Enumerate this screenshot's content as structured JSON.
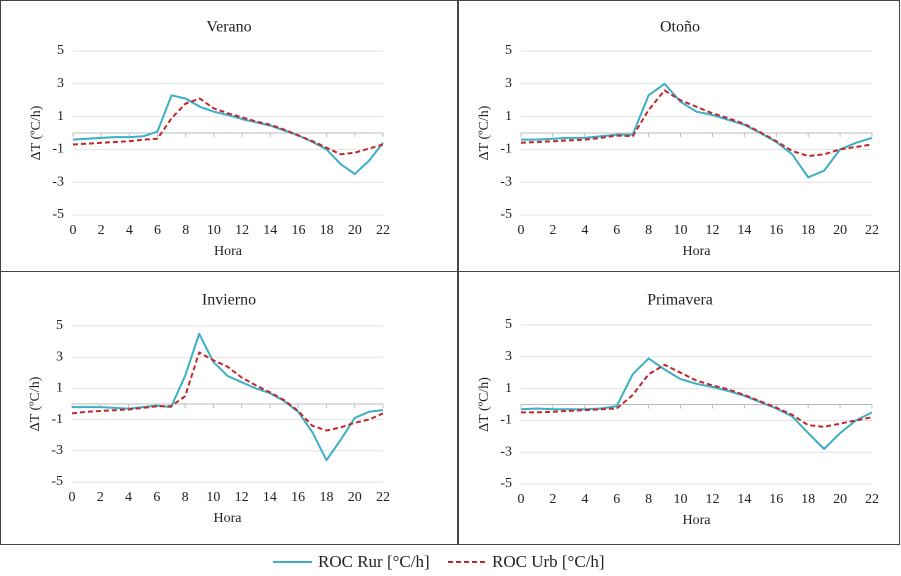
{
  "chart_data": [
    {
      "type": "line",
      "title": "Verano",
      "xlabel": "Hora",
      "ylabel": "ΔT (ºC/h)",
      "x": [
        0,
        1,
        2,
        3,
        4,
        5,
        6,
        7,
        8,
        9,
        10,
        11,
        12,
        13,
        14,
        15,
        16,
        17,
        18,
        19,
        20,
        21,
        22
      ],
      "xlim": [
        0,
        22
      ],
      "xticks": [
        0,
        2,
        4,
        6,
        8,
        10,
        12,
        14,
        16,
        18,
        20,
        22
      ],
      "ylim": [
        -5,
        5
      ],
      "yticks": [
        -5,
        -3,
        -1,
        1,
        3,
        5
      ],
      "grid": true,
      "series": [
        {
          "name": "ROC Rur [°C/h]",
          "color": "#3bafc4",
          "values": [
            -0.4,
            -0.35,
            -0.3,
            -0.25,
            -0.25,
            -0.2,
            0.1,
            2.3,
            2.1,
            1.6,
            1.3,
            1.1,
            0.85,
            0.65,
            0.45,
            0.15,
            -0.15,
            -0.55,
            -1.0,
            -1.9,
            -2.5,
            -1.7,
            -0.6
          ]
        },
        {
          "name": "ROC Urb [°C/h]",
          "color": "#c0282d",
          "dashed": true,
          "values": [
            -0.7,
            -0.65,
            -0.6,
            -0.55,
            -0.5,
            -0.4,
            -0.35,
            0.9,
            1.8,
            2.1,
            1.5,
            1.2,
            0.95,
            0.7,
            0.5,
            0.2,
            -0.15,
            -0.5,
            -0.9,
            -1.3,
            -1.2,
            -0.95,
            -0.7
          ]
        }
      ]
    },
    {
      "type": "line",
      "title": "Otoño",
      "xlabel": "Hora",
      "ylabel": "ΔT (ºC/h)",
      "x": [
        0,
        1,
        2,
        3,
        4,
        5,
        6,
        7,
        8,
        9,
        10,
        11,
        12,
        13,
        14,
        15,
        16,
        17,
        18,
        19,
        20,
        21,
        22
      ],
      "xlim": [
        0,
        22
      ],
      "xticks": [
        0,
        2,
        4,
        6,
        8,
        10,
        12,
        14,
        16,
        18,
        20,
        22
      ],
      "ylim": [
        -5,
        5
      ],
      "yticks": [
        -5,
        -3,
        -1,
        1,
        3,
        5
      ],
      "grid": true,
      "series": [
        {
          "color": "#3bafc4",
          "values": [
            -0.4,
            -0.4,
            -0.35,
            -0.3,
            -0.3,
            -0.2,
            -0.1,
            -0.1,
            2.3,
            3.0,
            1.9,
            1.3,
            1.1,
            0.8,
            0.5,
            0.0,
            -0.55,
            -1.3,
            -2.7,
            -2.3,
            -1.0,
            -0.6,
            -0.3
          ]
        },
        {
          "color": "#c0282d",
          "dashed": true,
          "values": [
            -0.6,
            -0.55,
            -0.5,
            -0.45,
            -0.4,
            -0.3,
            -0.15,
            -0.2,
            1.4,
            2.6,
            2.0,
            1.6,
            1.2,
            0.9,
            0.55,
            0.05,
            -0.5,
            -1.1,
            -1.4,
            -1.3,
            -1.0,
            -0.85,
            -0.7
          ]
        }
      ]
    },
    {
      "type": "line",
      "title": "Invierno",
      "xlabel": "Hora",
      "ylabel": "ΔT (ºC/h)",
      "x": [
        0,
        1,
        2,
        3,
        4,
        5,
        6,
        7,
        8,
        9,
        10,
        11,
        12,
        13,
        14,
        15,
        16,
        17,
        18,
        19,
        20,
        21,
        22
      ],
      "xlim": [
        0,
        22
      ],
      "xticks": [
        0,
        2,
        4,
        6,
        8,
        10,
        12,
        14,
        16,
        18,
        20,
        22
      ],
      "ylim": [
        -5,
        5
      ],
      "yticks": [
        -5,
        -3,
        -1,
        1,
        3,
        5
      ],
      "grid": true,
      "series": [
        {
          "color": "#3bafc4",
          "values": [
            -0.2,
            -0.2,
            -0.2,
            -0.25,
            -0.3,
            -0.2,
            -0.1,
            -0.2,
            1.8,
            4.5,
            2.7,
            1.8,
            1.4,
            1.0,
            0.7,
            0.2,
            -0.5,
            -1.8,
            -3.6,
            -2.3,
            -0.9,
            -0.5,
            -0.4
          ]
        },
        {
          "color": "#c0282d",
          "dashed": true,
          "values": [
            -0.6,
            -0.5,
            -0.45,
            -0.4,
            -0.35,
            -0.25,
            -0.15,
            -0.15,
            0.5,
            3.3,
            2.8,
            2.4,
            1.7,
            1.2,
            0.75,
            0.25,
            -0.45,
            -1.4,
            -1.7,
            -1.5,
            -1.2,
            -1.0,
            -0.6
          ]
        }
      ]
    },
    {
      "type": "line",
      "title": "Primavera",
      "xlabel": "Hora",
      "ylabel": "ΔT (ºC/h)",
      "x": [
        0,
        1,
        2,
        3,
        4,
        5,
        6,
        7,
        8,
        9,
        10,
        11,
        12,
        13,
        14,
        15,
        16,
        17,
        18,
        19,
        20,
        21,
        22
      ],
      "xlim": [
        0,
        22
      ],
      "xticks": [
        0,
        2,
        4,
        6,
        8,
        10,
        12,
        14,
        16,
        18,
        20,
        22
      ],
      "ylim": [
        -5,
        5
      ],
      "yticks": [
        -5,
        -3,
        -1,
        1,
        3,
        5
      ],
      "grid": true,
      "series": [
        {
          "color": "#3bafc4",
          "values": [
            -0.3,
            -0.25,
            -0.3,
            -0.3,
            -0.3,
            -0.25,
            -0.1,
            1.9,
            2.9,
            2.2,
            1.6,
            1.3,
            1.1,
            0.85,
            0.55,
            0.15,
            -0.25,
            -0.75,
            -1.8,
            -2.8,
            -1.8,
            -1.0,
            -0.5
          ]
        },
        {
          "color": "#c0282d",
          "dashed": true,
          "values": [
            -0.5,
            -0.5,
            -0.45,
            -0.4,
            -0.35,
            -0.3,
            -0.25,
            0.6,
            1.9,
            2.5,
            2.0,
            1.5,
            1.2,
            0.95,
            0.6,
            0.2,
            -0.2,
            -0.65,
            -1.3,
            -1.4,
            -1.2,
            -1.0,
            -0.8
          ]
        }
      ]
    }
  ]
}
